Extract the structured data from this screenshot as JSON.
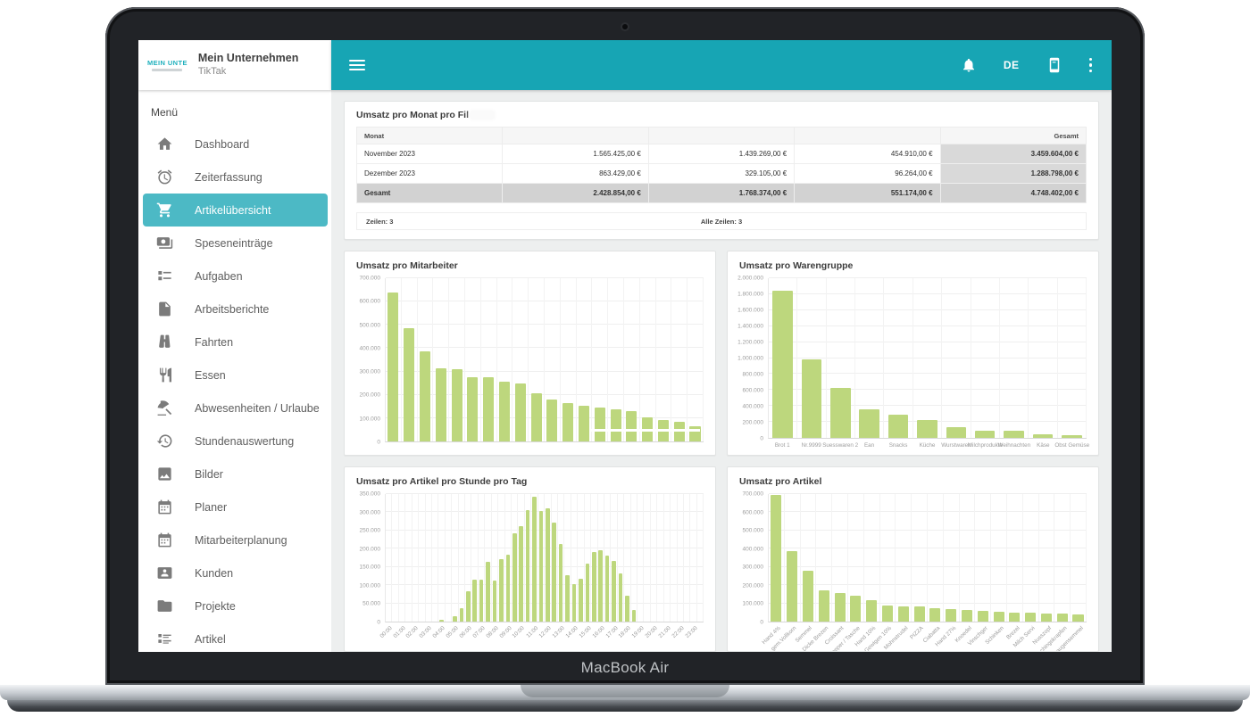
{
  "device": {
    "label": "MacBook Air"
  },
  "colors": {
    "accent": "#17a5b4",
    "accent_light": "#4cb9c5",
    "bar": "#bdd77d"
  },
  "sidebar": {
    "logo_text": "MEIN UNTE",
    "title": "Mein Unternehmen",
    "subtitle": "TikTak",
    "menu_label": "Menü",
    "items": [
      {
        "label": "Dashboard",
        "icon": "home",
        "active": false
      },
      {
        "label": "Zeiterfassung",
        "icon": "alarm",
        "active": false
      },
      {
        "label": "Artikelübersicht",
        "icon": "cart",
        "active": true
      },
      {
        "label": "Speseneinträge",
        "icon": "money",
        "active": false
      },
      {
        "label": "Aufgaben",
        "icon": "checklist",
        "active": false
      },
      {
        "label": "Arbeitsberichte",
        "icon": "document",
        "active": false
      },
      {
        "label": "Fahrten",
        "icon": "binoculars",
        "active": false
      },
      {
        "label": "Essen",
        "icon": "restaurant",
        "active": false
      },
      {
        "label": "Abwesenheiten / Urlaube",
        "icon": "beach",
        "active": false
      },
      {
        "label": "Stundenauswertung",
        "icon": "history",
        "active": false
      },
      {
        "label": "Bilder",
        "icon": "image",
        "active": false
      },
      {
        "label": "Planer",
        "icon": "calendar",
        "active": false
      },
      {
        "label": "Mitarbeiterplanung",
        "icon": "calendar",
        "active": false
      },
      {
        "label": "Kunden",
        "icon": "contact",
        "active": false
      },
      {
        "label": "Projekte",
        "icon": "folder",
        "active": false
      },
      {
        "label": "Artikel",
        "icon": "list",
        "active": false
      }
    ]
  },
  "topbar": {
    "language": "DE"
  },
  "table_card": {
    "title": "Umsatz pro Monat pro Fil",
    "columns": [
      "Monat",
      "",
      "",
      "",
      "Gesamt"
    ],
    "rows": [
      [
        "November 2023",
        "1.565.425,00 €",
        "1.439.269,00 €",
        "454.910,00 €",
        "3.459.604,00 €"
      ],
      [
        "Dezember 2023",
        "863.429,00 €",
        "329.105,00 €",
        "96.264,00 €",
        "1.288.798,00 €"
      ],
      [
        "Gesamt",
        "2.428.854,00 €",
        "1.768.374,00 €",
        "551.174,00 €",
        "4.748.402,00 €"
      ]
    ],
    "footer_left": "Zeilen: 3",
    "footer_center": "Alle Zeilen: 3"
  },
  "chart_data": [
    {
      "type": "bar",
      "title": "Umsatz pro Mitarbeiter",
      "ylim": [
        0,
        700000
      ],
      "y_ticks": [
        "700.000",
        "600.000",
        "500.000",
        "400.000",
        "300.000",
        "200.000",
        "100.000",
        "0"
      ],
      "categories": [],
      "values": [
        640000,
        485000,
        388000,
        315000,
        310000,
        276000,
        274000,
        256000,
        250000,
        207000,
        180000,
        165000,
        153000,
        144000,
        137000,
        131000,
        105000,
        91000,
        83000,
        64000
      ],
      "xlabel": "",
      "ylabel": "",
      "grid": true,
      "rotate_labels": false
    },
    {
      "type": "bar",
      "title": "Umsatz pro Warengruppe",
      "ylim": [
        0,
        2000000
      ],
      "y_ticks": [
        "2.000.000",
        "1.800.000",
        "1.600.000",
        "1.400.000",
        "1.200.000",
        "1.000.000",
        "800.000",
        "600.000",
        "400.000",
        "200.000",
        "0"
      ],
      "categories": [
        "Brot 1",
        "Nr.9999",
        "Suesswaren 2",
        "Ean",
        "Snacks",
        "Küche",
        "Wurstwaren",
        "Milchprodukte",
        "Weihnachten",
        "Käse",
        "Obst Gemüse"
      ],
      "values": [
        1840000,
        980000,
        630000,
        360000,
        290000,
        225000,
        130000,
        95000,
        85000,
        45000,
        35000
      ],
      "xlabel": "",
      "ylabel": "",
      "grid": true,
      "rotate_labels": false
    },
    {
      "type": "bar",
      "title": "Umsatz pro Artikel pro Stunde pro Tag",
      "ylim": [
        0,
        350000
      ],
      "y_ticks": [
        "350.000",
        "300.000",
        "250.000",
        "200.000",
        "150.000",
        "100.000",
        "50.000",
        "0"
      ],
      "categories": [
        "00:00",
        "",
        "01:00",
        "",
        "02:00",
        "",
        "03:00",
        "",
        "04:00",
        "",
        "05:00",
        "",
        "06:00",
        "",
        "07:00",
        "",
        "08:00",
        "",
        "09:00",
        "",
        "10:00",
        "",
        "11:00",
        "",
        "12:00",
        "",
        "13:00",
        "",
        "14:00",
        "",
        "15:00",
        "",
        "16:00",
        "",
        "17:00",
        "",
        "18:00",
        "",
        "19:00",
        "",
        "20:00",
        "",
        "21:00",
        "",
        "22:00",
        "",
        "23:00",
        ""
      ],
      "values": [
        0,
        0,
        0,
        0,
        0,
        0,
        0,
        0,
        4000,
        0,
        15000,
        36000,
        83000,
        115000,
        116000,
        165000,
        113000,
        172000,
        183000,
        243000,
        263000,
        305000,
        343000,
        304000,
        312000,
        272000,
        212000,
        127000,
        102000,
        117000,
        158000,
        191000,
        196000,
        182000,
        166000,
        133000,
        72000,
        32000,
        0,
        0,
        0,
        0,
        0,
        0,
        0,
        0,
        0,
        0
      ],
      "xlabel": "",
      "ylabel": "",
      "grid": true,
      "rotate_labels": true
    },
    {
      "type": "bar",
      "title": "Umsatz pro Artikel",
      "ylim": [
        0,
        700000
      ],
      "y_ticks": [
        "700.000",
        "600.000",
        "500.000",
        "400.000",
        "300.000",
        "200.000",
        "100.000",
        "0"
      ],
      "categories": [
        "Hand 4%",
        "gem.Vollkorn",
        "Semmel",
        "Dicke Brezen",
        "Croissant",
        "Shopper / Tasche",
        "Hand 10%",
        "Gewigen 10%",
        "Mohnstrudel",
        "PIZZA",
        "Ciabatta",
        "Hand 27%",
        "Knoedel",
        "Vinschger",
        "Schinken",
        "Brezel",
        "Milch Servi",
        "Nusszopf",
        "Faschingskrapfen",
        "Laugensemmel"
      ],
      "values": [
        695000,
        385000,
        280000,
        172000,
        156000,
        140000,
        116000,
        89000,
        82000,
        82000,
        73000,
        67000,
        62000,
        58000,
        55000,
        50000,
        48000,
        46000,
        45000,
        40000
      ],
      "xlabel": "",
      "ylabel": "",
      "grid": true,
      "rotate_labels": true
    }
  ]
}
